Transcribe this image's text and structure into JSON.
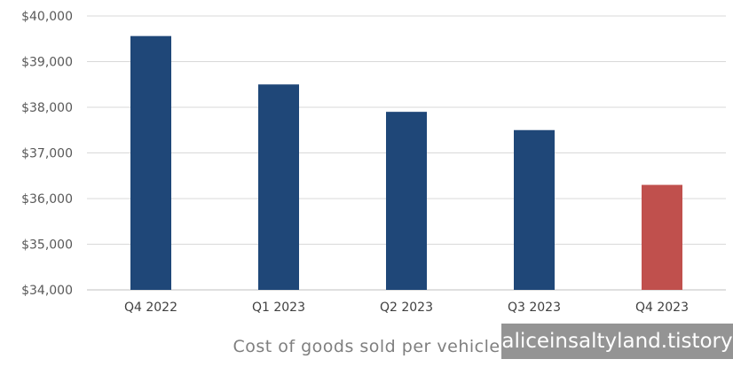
{
  "chart_data": {
    "type": "bar",
    "categories": [
      "Q4 2022",
      "Q1 2023",
      "Q2 2023",
      "Q3 2023",
      "Q4 2023"
    ],
    "values": [
      39560,
      38500,
      37900,
      37500,
      36300
    ],
    "bar_colors": [
      "#1f4778",
      "#1f4778",
      "#1f4778",
      "#1f4778",
      "#c0504d"
    ],
    "ylim": [
      34000,
      40000
    ],
    "yticks": [
      34000,
      35000,
      36000,
      37000,
      38000,
      39000,
      40000
    ],
    "ytick_labels": [
      "$34,000",
      "$35,000",
      "$36,000",
      "$37,000",
      "$38,000",
      "$39,000",
      "$40,000"
    ],
    "xlabel": "Cost of goods sold per vehicle",
    "grid": true
  },
  "watermark": "aliceinsaltyland.tistory"
}
